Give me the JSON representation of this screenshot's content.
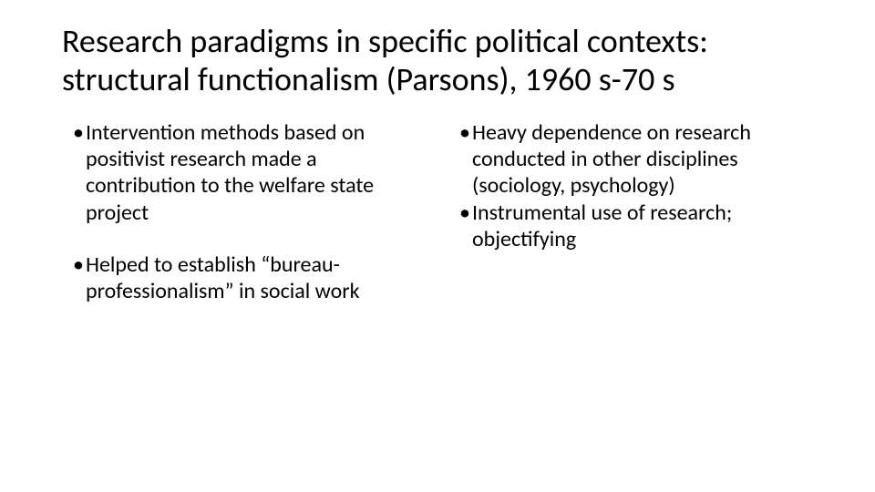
{
  "slide": {
    "background_color": "#ffffff",
    "text_color": "#000000",
    "title_fontsize": 36,
    "body_fontsize": 24,
    "font_family": "Calibri, 'Segoe UI', Arial, sans-serif",
    "title": "Research paradigms in specific political contexts: structural functionalism (Parsons), 1960 s-70 s",
    "columns": {
      "left": {
        "bullets": [
          "Intervention methods based on positivist research made a contribution to the welfare state project",
          "Helped to establish “bureau-professionalism” in social work"
        ]
      },
      "right": {
        "bullets": [
          "Heavy dependence on research conducted in other disciplines (sociology, psychology)",
          "Instrumental use of research; objectifying"
        ]
      }
    }
  }
}
